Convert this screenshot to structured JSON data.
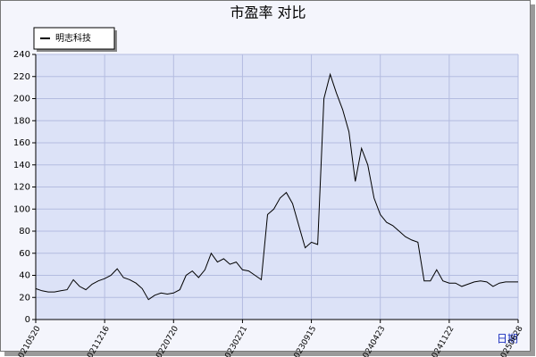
{
  "chart_data": {
    "type": "line",
    "title": "市盈率  对比",
    "x_label": "日期",
    "categories": [
      "20210520",
      null,
      null,
      null,
      null,
      null,
      null,
      null,
      null,
      null,
      null,
      "20211216",
      null,
      null,
      null,
      null,
      null,
      null,
      null,
      null,
      null,
      null,
      "20220720",
      null,
      null,
      null,
      null,
      null,
      null,
      null,
      null,
      null,
      null,
      "20230221",
      null,
      null,
      null,
      null,
      null,
      null,
      null,
      null,
      null,
      null,
      "20230915",
      null,
      null,
      null,
      null,
      null,
      null,
      null,
      null,
      null,
      null,
      "20240423",
      null,
      null,
      null,
      null,
      null,
      null,
      null,
      null,
      null,
      null,
      "20241122",
      null,
      null,
      null,
      null,
      null,
      null,
      null,
      null,
      null,
      null,
      "20250628"
    ],
    "series": [
      {
        "name": "明志科技",
        "color": "#000000",
        "values": [
          28,
          26,
          25,
          25,
          26,
          27,
          36,
          30,
          27,
          32,
          35,
          37,
          40,
          46,
          38,
          36,
          33,
          28,
          18,
          22,
          24,
          23,
          24,
          27,
          40,
          44,
          38,
          45,
          60,
          52,
          55,
          50,
          52,
          45,
          44,
          40,
          36,
          95,
          100,
          110,
          115,
          105,
          85,
          65,
          70,
          68,
          200,
          222,
          205,
          190,
          170,
          125,
          155,
          140,
          110,
          95,
          88,
          85,
          80,
          75,
          72,
          70,
          35,
          35,
          45,
          35,
          33,
          33,
          30,
          32,
          34,
          35,
          34,
          30,
          33,
          34,
          34,
          34
        ]
      }
    ],
    "ylim": [
      0,
      240
    ],
    "yticks": [
      0,
      20,
      40,
      60,
      80,
      100,
      120,
      140,
      160,
      180,
      200,
      220,
      240
    ],
    "grid": true,
    "legend": "top-left"
  }
}
